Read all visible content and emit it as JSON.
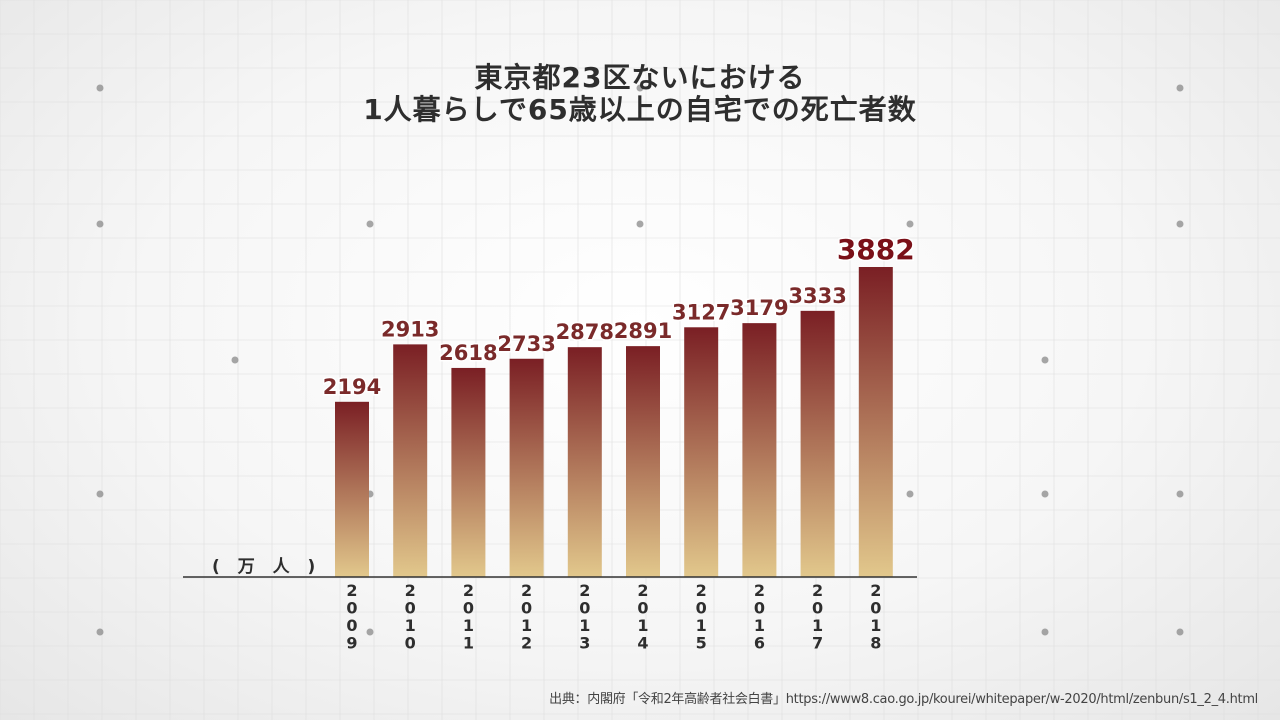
{
  "chart_data": {
    "type": "bar",
    "title_line1": "東京都23区ないにおける",
    "title_line2": "1人暮らしで65歳以上の自宅での死亡者数",
    "unit_label": "( 万 人 )",
    "categories": [
      "2009",
      "2010",
      "2011",
      "2012",
      "2013",
      "2014",
      "2015",
      "2016",
      "2017",
      "2018"
    ],
    "values": [
      2194,
      2913,
      2618,
      2733,
      2878,
      2891,
      3127,
      3179,
      3333,
      3882
    ],
    "ylim": [
      0,
      3882
    ],
    "grid": true,
    "legend": "none",
    "source": "出典：内閣府「令和2年高齢者社会白書」https://www8.cao.go.jp/kourei/whitepaper/w-2020/html/zenbun/s1_2_4.html",
    "colors": {
      "bar_top": "#7a1f24",
      "bar_bottom": "#e2c88c",
      "label": "#7a2a2a",
      "highlight_label": "#7a1018",
      "axis": "#333333",
      "grid": "#dedede"
    }
  }
}
